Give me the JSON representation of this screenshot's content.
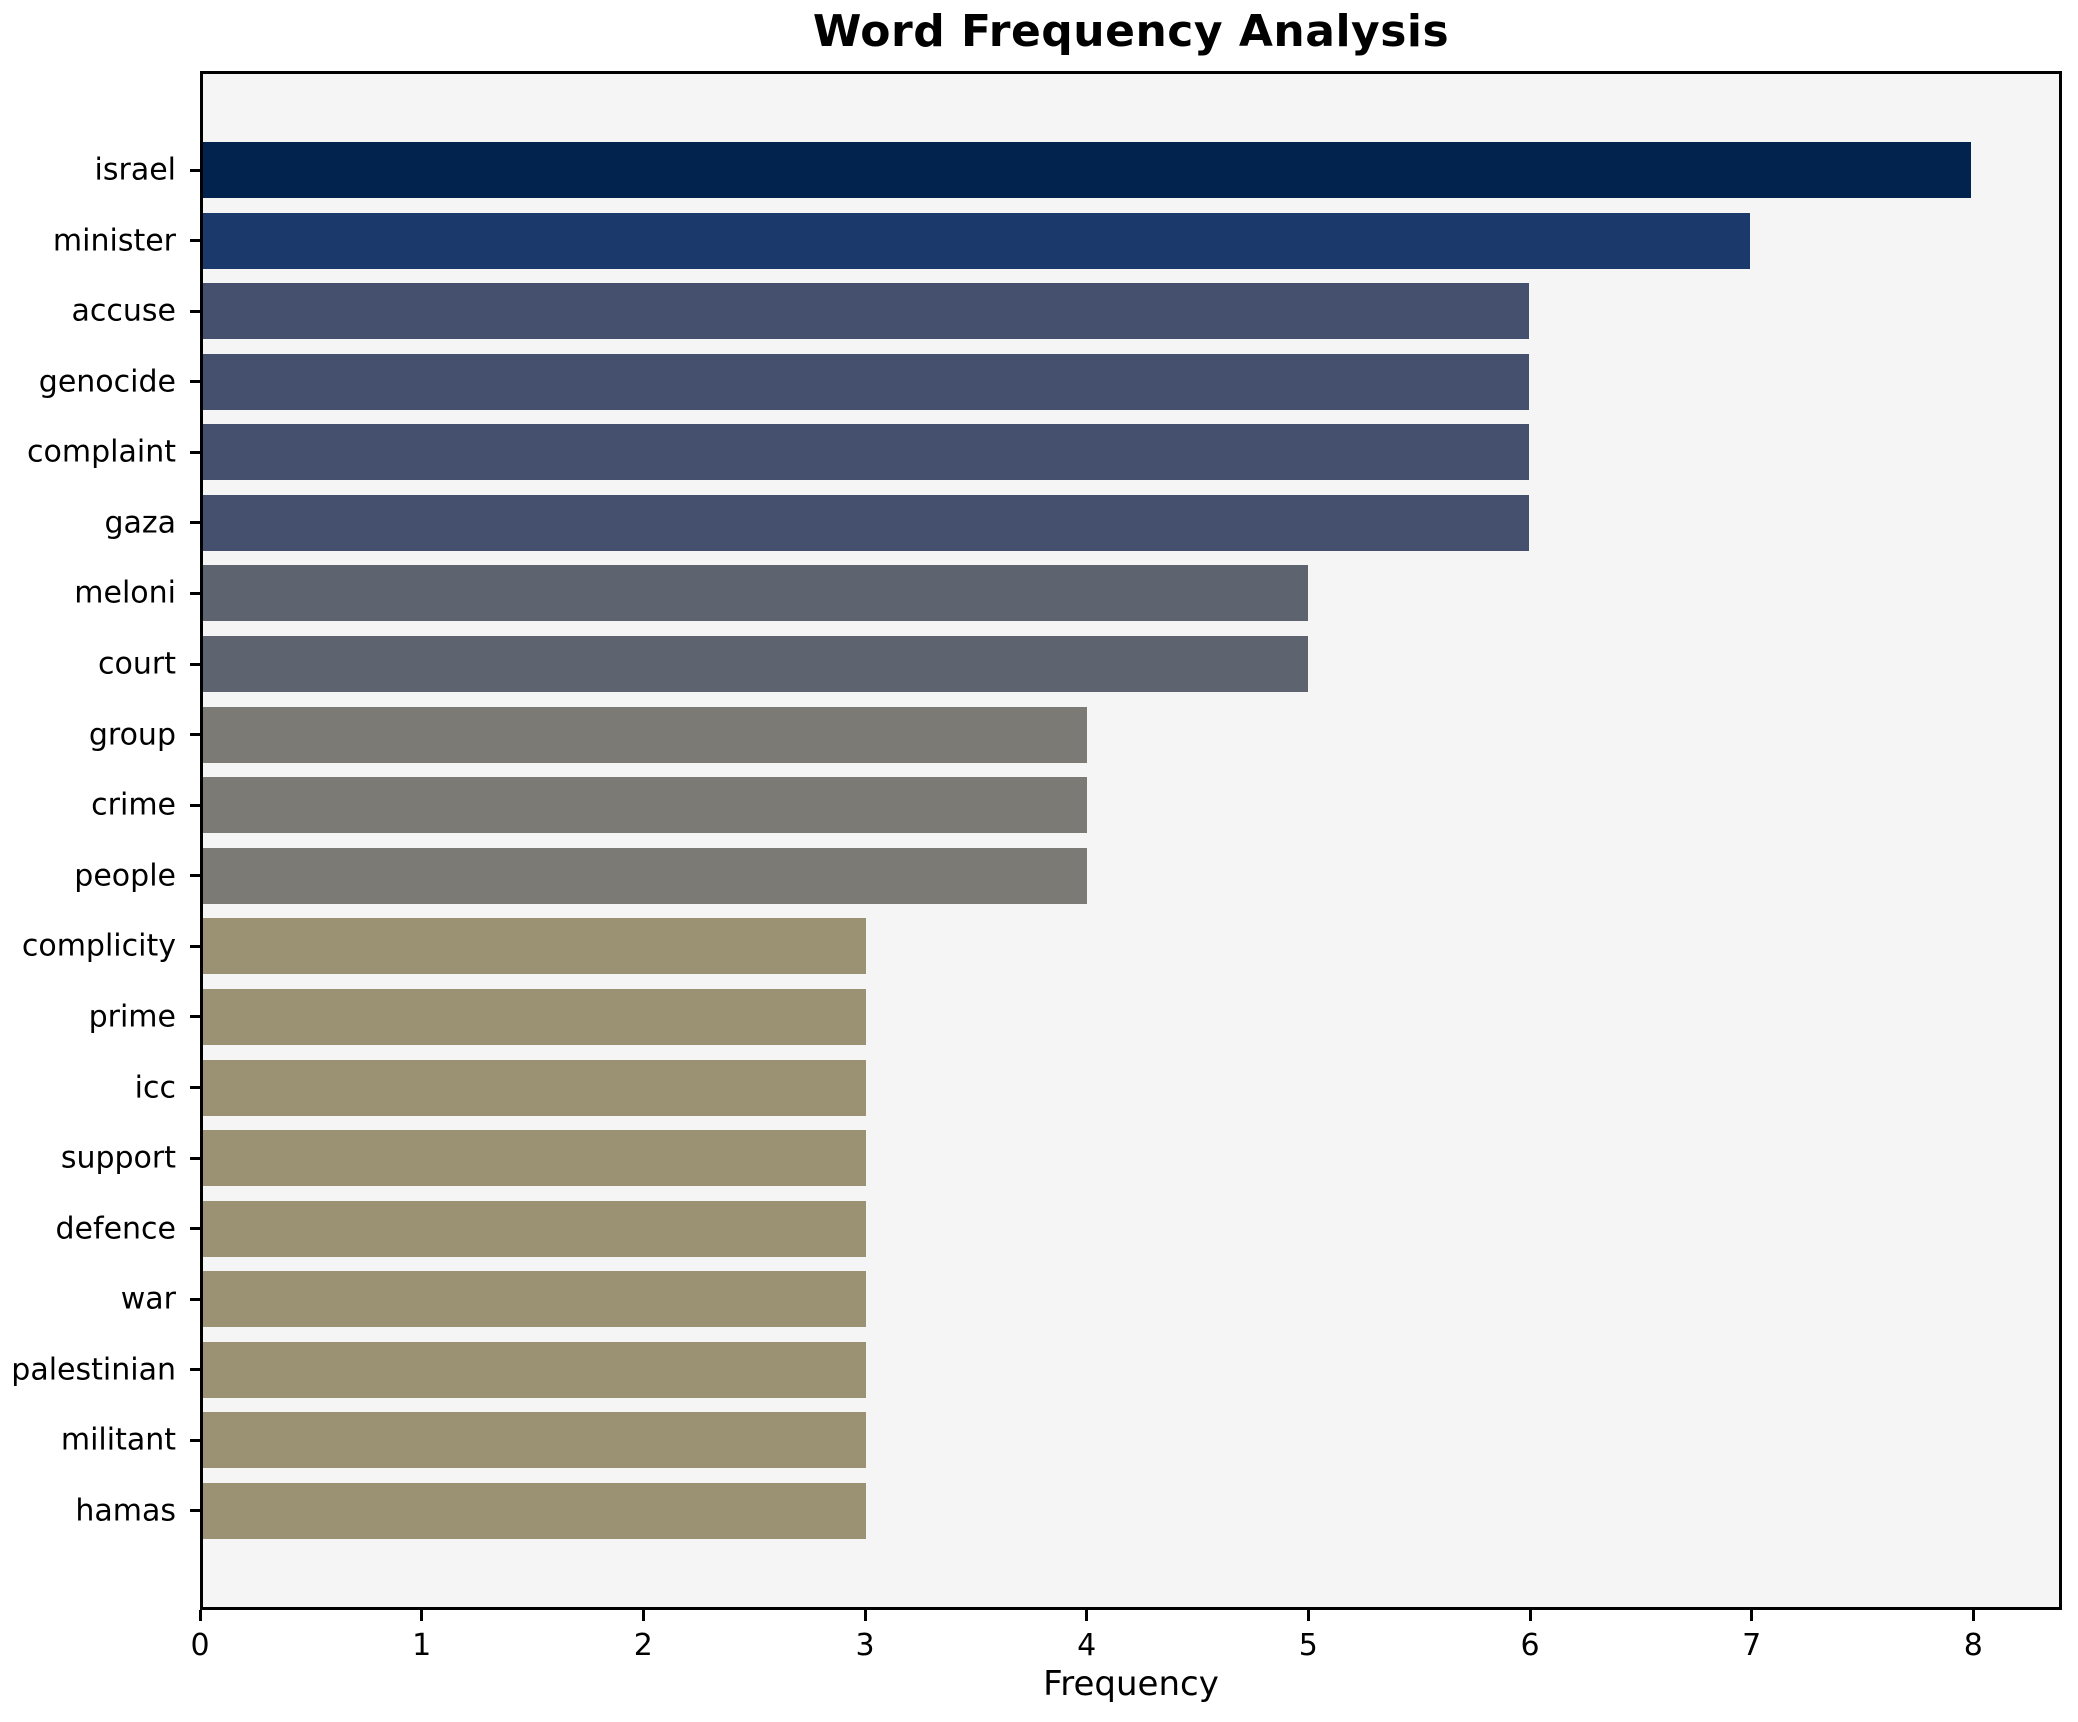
{
  "chart_data": {
    "type": "bar",
    "orientation": "horizontal",
    "title": "Word Frequency Analysis",
    "xlabel": "Frequency",
    "ylabel": "",
    "categories": [
      "israel",
      "minister",
      "accuse",
      "genocide",
      "complaint",
      "gaza",
      "meloni",
      "court",
      "group",
      "crime",
      "people",
      "complicity",
      "prime",
      "icc",
      "support",
      "defence",
      "war",
      "palestinian",
      "militant",
      "hamas"
    ],
    "values": [
      8,
      7,
      6,
      6,
      6,
      6,
      5,
      5,
      4,
      4,
      4,
      3,
      3,
      3,
      3,
      3,
      3,
      3,
      3,
      3
    ],
    "bar_colors": [
      "#02234d",
      "#1b3a6b",
      "#45506e",
      "#45506e",
      "#45506e",
      "#45506e",
      "#5e6370",
      "#5e6370",
      "#7b7a75",
      "#7b7a75",
      "#7b7a75",
      "#9a9272",
      "#9a9272",
      "#9a9272",
      "#9a9272",
      "#9a9272",
      "#9a9272",
      "#9a9272",
      "#9a9272",
      "#9a9272"
    ],
    "x_ticks": [
      0,
      1,
      2,
      3,
      4,
      5,
      6,
      7,
      8
    ],
    "xlim": [
      0,
      8.4
    ],
    "grid": false,
    "legend": false,
    "plot_bg": "#f5f5f6",
    "figure_bg": "#ffffff",
    "spine_color": "#000000"
  }
}
